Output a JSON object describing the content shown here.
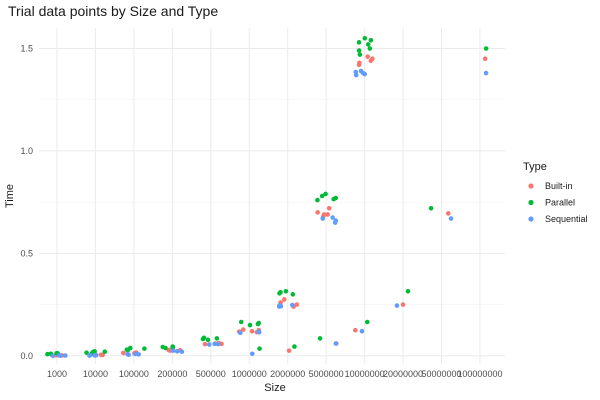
{
  "chart_data": {
    "type": "scatter",
    "title": "Trial data points by Size and Type",
    "xlabel": "Size",
    "ylabel": "Time",
    "ylim": [
      -0.04,
      1.6
    ],
    "yticks": [
      {
        "value": 0.0,
        "label": "0.0"
      },
      {
        "value": 0.5,
        "label": "0.5"
      },
      {
        "value": 1.0,
        "label": "1.0"
      },
      {
        "value": 1.5,
        "label": "1.5"
      }
    ],
    "categories": [
      "1000",
      "10000",
      "100000",
      "200000",
      "500000",
      "1000000",
      "2000000",
      "5000000",
      "10000000",
      "20000000",
      "50000000",
      "100000000"
    ],
    "grid": true,
    "legend": {
      "title": "Type",
      "placement": "right",
      "entries": [
        {
          "name": "Built-in",
          "color": "#F8766D"
        },
        {
          "name": "Parallel",
          "color": "#00BA38"
        },
        {
          "name": "Sequential",
          "color": "#619CFF"
        }
      ]
    },
    "series": [
      {
        "name": "Built-in",
        "color": "#F8766D",
        "points": [
          {
            "x": "1000",
            "y": 0.002
          },
          {
            "x": "1000",
            "y": 0.003
          },
          {
            "x": "1000",
            "y": 0.003
          },
          {
            "x": "1000",
            "y": 0.004
          },
          {
            "x": "10000",
            "y": 0.004
          },
          {
            "x": "10000",
            "y": 0.005
          },
          {
            "x": "10000",
            "y": 0.006
          },
          {
            "x": "10000",
            "y": 0.006
          },
          {
            "x": "100000",
            "y": 0.012
          },
          {
            "x": "100000",
            "y": 0.014
          },
          {
            "x": "100000",
            "y": 0.015
          },
          {
            "x": "100000",
            "y": 0.016
          },
          {
            "x": "200000",
            "y": 0.025
          },
          {
            "x": "200000",
            "y": 0.027
          },
          {
            "x": "200000",
            "y": 0.028
          },
          {
            "x": "200000",
            "y": 0.03
          },
          {
            "x": "500000",
            "y": 0.057
          },
          {
            "x": "500000",
            "y": 0.058
          },
          {
            "x": "500000",
            "y": 0.06
          },
          {
            "x": "500000",
            "y": 0.062
          },
          {
            "x": "1000000",
            "y": 0.115
          },
          {
            "x": "1000000",
            "y": 0.118
          },
          {
            "x": "1000000",
            "y": 0.12
          },
          {
            "x": "1000000",
            "y": 0.125
          },
          {
            "x": "1000000",
            "y": 0.128
          },
          {
            "x": "2000000",
            "y": 0.24
          },
          {
            "x": "2000000",
            "y": 0.245
          },
          {
            "x": "2000000",
            "y": 0.25
          },
          {
            "x": "2000000",
            "y": 0.26
          },
          {
            "x": "2000000",
            "y": 0.275
          },
          {
            "x": "2000000",
            "y": 0.025
          },
          {
            "x": "5000000",
            "y": 0.68
          },
          {
            "x": "5000000",
            "y": 0.69
          },
          {
            "x": "5000000",
            "y": 0.69
          },
          {
            "x": "5000000",
            "y": 0.7
          },
          {
            "x": "5000000",
            "y": 0.72
          },
          {
            "x": "5000000",
            "y": 0.06
          },
          {
            "x": "10000000",
            "y": 1.42
          },
          {
            "x": "10000000",
            "y": 1.43
          },
          {
            "x": "10000000",
            "y": 1.44
          },
          {
            "x": "10000000",
            "y": 1.45
          },
          {
            "x": "10000000",
            "y": 1.46
          },
          {
            "x": "10000000",
            "y": 0.125
          },
          {
            "x": "20000000",
            "y": 0.25
          },
          {
            "x": "50000000",
            "y": 0.695
          },
          {
            "x": "100000000",
            "y": 1.45
          }
        ]
      },
      {
        "name": "Parallel",
        "color": "#00BA38",
        "points": [
          {
            "x": "1000",
            "y": 0.008
          },
          {
            "x": "1000",
            "y": 0.01
          },
          {
            "x": "1000",
            "y": 0.012
          },
          {
            "x": "1000",
            "y": 0.013
          },
          {
            "x": "10000",
            "y": 0.012
          },
          {
            "x": "10000",
            "y": 0.015
          },
          {
            "x": "10000",
            "y": 0.018
          },
          {
            "x": "10000",
            "y": 0.02
          },
          {
            "x": "10000",
            "y": 0.022
          },
          {
            "x": "100000",
            "y": 0.028
          },
          {
            "x": "100000",
            "y": 0.03
          },
          {
            "x": "100000",
            "y": 0.035
          },
          {
            "x": "100000",
            "y": 0.038
          },
          {
            "x": "200000",
            "y": 0.038
          },
          {
            "x": "200000",
            "y": 0.04
          },
          {
            "x": "200000",
            "y": 0.043
          },
          {
            "x": "200000",
            "y": 0.045
          },
          {
            "x": "500000",
            "y": 0.078
          },
          {
            "x": "500000",
            "y": 0.082
          },
          {
            "x": "500000",
            "y": 0.085
          },
          {
            "x": "500000",
            "y": 0.088
          },
          {
            "x": "1000000",
            "y": 0.15
          },
          {
            "x": "1000000",
            "y": 0.155
          },
          {
            "x": "1000000",
            "y": 0.16
          },
          {
            "x": "1000000",
            "y": 0.165
          },
          {
            "x": "1000000",
            "y": 0.035
          },
          {
            "x": "2000000",
            "y": 0.3
          },
          {
            "x": "2000000",
            "y": 0.305
          },
          {
            "x": "2000000",
            "y": 0.31
          },
          {
            "x": "2000000",
            "y": 0.315
          },
          {
            "x": "2000000",
            "y": 0.045
          },
          {
            "x": "5000000",
            "y": 0.76
          },
          {
            "x": "5000000",
            "y": 0.765
          },
          {
            "x": "5000000",
            "y": 0.77
          },
          {
            "x": "5000000",
            "y": 0.78
          },
          {
            "x": "5000000",
            "y": 0.79
          },
          {
            "x": "5000000",
            "y": 0.085
          },
          {
            "x": "10000000",
            "y": 1.47
          },
          {
            "x": "10000000",
            "y": 1.49
          },
          {
            "x": "10000000",
            "y": 1.5
          },
          {
            "x": "10000000",
            "y": 1.52
          },
          {
            "x": "10000000",
            "y": 1.53
          },
          {
            "x": "10000000",
            "y": 1.54
          },
          {
            "x": "10000000",
            "y": 1.55
          },
          {
            "x": "10000000",
            "y": 0.165
          },
          {
            "x": "20000000",
            "y": 0.315
          },
          {
            "x": "50000000",
            "y": 0.72
          },
          {
            "x": "100000000",
            "y": 1.5
          }
        ]
      },
      {
        "name": "Sequential",
        "color": "#619CFF",
        "points": [
          {
            "x": "1000",
            "y": 0.0
          },
          {
            "x": "1000",
            "y": 0.001
          },
          {
            "x": "1000",
            "y": 0.001
          },
          {
            "x": "1000",
            "y": 0.002
          },
          {
            "x": "10000",
            "y": 0.001
          },
          {
            "x": "10000",
            "y": 0.002
          },
          {
            "x": "10000",
            "y": 0.002
          },
          {
            "x": "10000",
            "y": 0.003
          },
          {
            "x": "100000",
            "y": 0.005
          },
          {
            "x": "100000",
            "y": 0.007
          },
          {
            "x": "100000",
            "y": 0.008
          },
          {
            "x": "100000",
            "y": 0.009
          },
          {
            "x": "200000",
            "y": 0.02
          },
          {
            "x": "200000",
            "y": 0.022
          },
          {
            "x": "200000",
            "y": 0.025
          },
          {
            "x": "500000",
            "y": 0.055
          },
          {
            "x": "500000",
            "y": 0.057
          },
          {
            "x": "500000",
            "y": 0.058
          },
          {
            "x": "1000000",
            "y": 0.112
          },
          {
            "x": "1000000",
            "y": 0.115
          },
          {
            "x": "1000000",
            "y": 0.118
          },
          {
            "x": "1000000",
            "y": 0.01
          },
          {
            "x": "2000000",
            "y": 0.24
          },
          {
            "x": "2000000",
            "y": 0.242
          },
          {
            "x": "2000000",
            "y": 0.245
          },
          {
            "x": "2000000",
            "y": 0.248
          },
          {
            "x": "5000000",
            "y": 0.65
          },
          {
            "x": "5000000",
            "y": 0.66
          },
          {
            "x": "5000000",
            "y": 0.67
          },
          {
            "x": "5000000",
            "y": 0.675
          },
          {
            "x": "5000000",
            "y": 0.06
          },
          {
            "x": "10000000",
            "y": 1.37
          },
          {
            "x": "10000000",
            "y": 1.375
          },
          {
            "x": "10000000",
            "y": 1.38
          },
          {
            "x": "10000000",
            "y": 1.385
          },
          {
            "x": "10000000",
            "y": 1.39
          },
          {
            "x": "10000000",
            "y": 0.12
          },
          {
            "x": "20000000",
            "y": 0.245
          },
          {
            "x": "50000000",
            "y": 0.67
          },
          {
            "x": "100000000",
            "y": 1.38
          }
        ]
      }
    ]
  }
}
